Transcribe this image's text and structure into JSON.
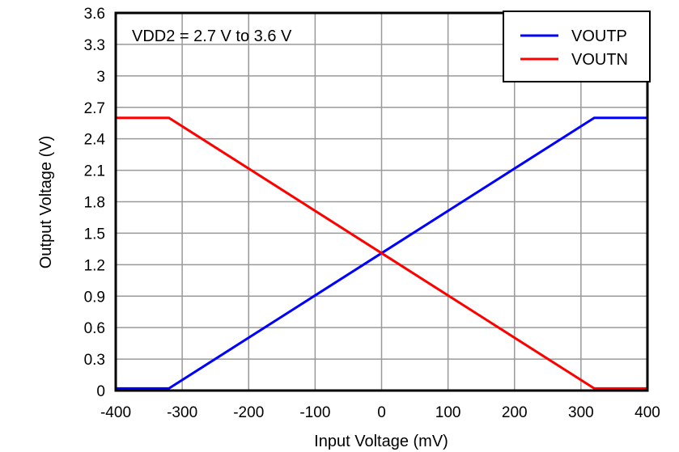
{
  "chart_data": {
    "type": "line",
    "title": "",
    "xlabel": "Input Voltage (mV)",
    "ylabel": "Output Voltage (V)",
    "xlim": [
      -400,
      400
    ],
    "ylim": [
      0,
      3.6
    ],
    "xticks": [
      -400,
      -300,
      -200,
      -100,
      0,
      100,
      200,
      300,
      400
    ],
    "yticks": [
      0,
      0.3,
      0.6,
      0.9,
      1.2,
      1.5,
      1.8,
      2.1,
      2.4,
      2.7,
      3,
      3.3,
      3.6
    ],
    "grid": true,
    "legend_position": "top-right",
    "annotation": "VDD2 = 2.7 V to 3.6 V",
    "series": [
      {
        "name": "VOUTP",
        "color": "#0000ff",
        "x": [
          -400,
          -320,
          0,
          320,
          400
        ],
        "y": [
          0.02,
          0.02,
          1.31,
          2.6,
          2.6
        ]
      },
      {
        "name": "VOUTN",
        "color": "#ff0000",
        "x": [
          -400,
          -320,
          0,
          320,
          400
        ],
        "y": [
          2.6,
          2.6,
          1.31,
          0.02,
          0.02
        ]
      }
    ]
  }
}
